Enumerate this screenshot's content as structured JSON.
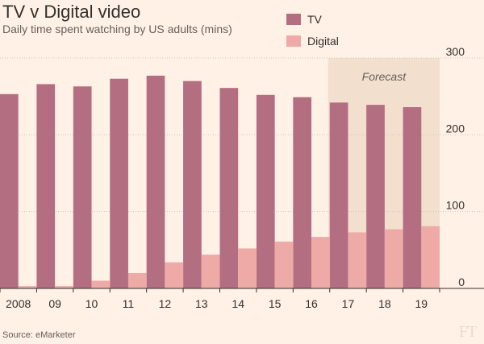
{
  "title": "TV v Digital video",
  "subtitle": "Daily time spent watching by US adults (mins)",
  "source": "Source: eMarketer",
  "logo": "FT",
  "colors": {
    "tv": "#b46e81",
    "digital": "#eeaaa6",
    "forecast_band": "#f2dfce",
    "text": "#33302e",
    "grid": "#cec6b9"
  },
  "chart_data": {
    "type": "bar",
    "categories": [
      "2008",
      "09",
      "10",
      "11",
      "12",
      "13",
      "14",
      "15",
      "16",
      "17",
      "18",
      "19"
    ],
    "series": [
      {
        "name": "TV",
        "values": [
          253,
          266,
          263,
          273,
          277,
          270,
          261,
          252,
          249,
          242,
          239,
          236
        ]
      },
      {
        "name": "Digital",
        "values": [
          3,
          3,
          10,
          20,
          34,
          44,
          52,
          61,
          67,
          73,
          77,
          81
        ]
      }
    ],
    "ylim": [
      0,
      300
    ],
    "yticks": [
      0,
      100,
      200,
      300
    ],
    "grid": true,
    "legend_position": "top-right",
    "annotation": {
      "label": "Forecast",
      "from_category": "17",
      "to_category": "19"
    }
  }
}
